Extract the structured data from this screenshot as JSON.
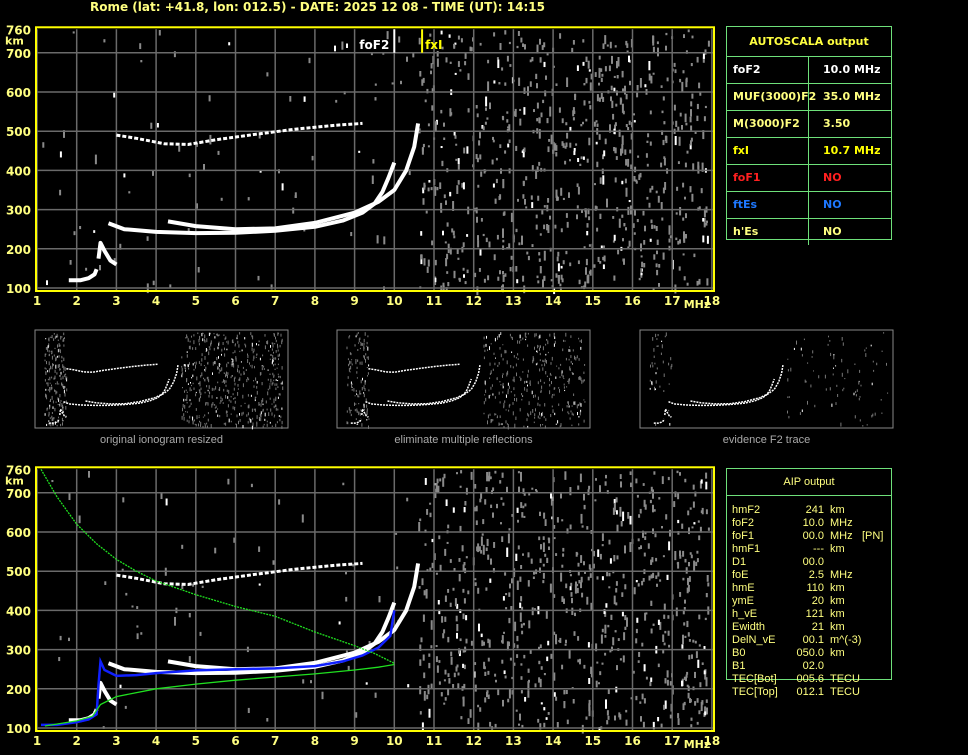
{
  "header": {
    "title": "Rome (lat: +41.8, lon: 012.5) - DATE: 2025 12 08 - TIME (UT): 14:15"
  },
  "colors": {
    "frame": "#ffff00",
    "grid": "#6a6a6a",
    "trace": "#ffffff",
    "noise": "#8a8a8a",
    "profile": "#1020ff",
    "model": "#20e020",
    "label": "#ffff80",
    "table_border": "#6ee07a"
  },
  "autoscala": {
    "title": "AUTOSCALA output",
    "rows": [
      {
        "key": "foF2",
        "value": "10.0 MHz",
        "color": "#ffffff"
      },
      {
        "key": "MUF(3000)F2",
        "value": "35.0 MHz",
        "color": "#ffff80"
      },
      {
        "key": "M(3000)F2",
        "value": "3.50",
        "color": "#ffff80"
      },
      {
        "key": "fxI",
        "value": "10.7 MHz",
        "color": "#ffff00"
      },
      {
        "key": "foF1",
        "value": "NO",
        "color": "#ff2020"
      },
      {
        "key": "ftEs",
        "value": "NO",
        "color": "#1e78ff"
      },
      {
        "key": "h'Es",
        "value": "NO",
        "color": "#ffff80"
      }
    ]
  },
  "aip": {
    "title": "AIP output",
    "rows": [
      {
        "key": "hmF2",
        "value": "241",
        "unit": "km",
        "note": ""
      },
      {
        "key": "foF2",
        "value": "10.0",
        "unit": "MHz",
        "note": ""
      },
      {
        "key": "foF1",
        "value": "00.0",
        "unit": "MHz",
        "note": "[PN]"
      },
      {
        "key": "hmF1",
        "value": "---",
        "unit": "km",
        "note": ""
      },
      {
        "key": "D1",
        "value": "00.0",
        "unit": "",
        "note": ""
      },
      {
        "key": "foE",
        "value": "2.5",
        "unit": "MHz",
        "note": ""
      },
      {
        "key": "hmE",
        "value": "110",
        "unit": "km",
        "note": ""
      },
      {
        "key": "ymE",
        "value": "20",
        "unit": "km",
        "note": ""
      },
      {
        "key": "h_vE",
        "value": "121",
        "unit": "km",
        "note": ""
      },
      {
        "key": "Ewidth",
        "value": "21",
        "unit": "km",
        "note": ""
      },
      {
        "key": "DelN_vE",
        "value": "00.1",
        "unit": "m^(-3)",
        "note": ""
      },
      {
        "key": "B0",
        "value": "050.0",
        "unit": "km",
        "note": ""
      },
      {
        "key": "B1",
        "value": "02.0",
        "unit": "",
        "note": ""
      },
      {
        "key": "TEC[Bot]",
        "value": "005.6",
        "unit": "TECU",
        "note": ""
      },
      {
        "key": "TEC[Top]",
        "value": "012.1",
        "unit": "TECU",
        "note": ""
      }
    ]
  },
  "thumbnails": [
    {
      "caption": "original ionogram resized"
    },
    {
      "caption": "eliminate multiple reflections"
    },
    {
      "caption": "evidence F2 trace"
    }
  ],
  "chart_data": [
    {
      "type": "scatter",
      "name": "ionogram-autoscala",
      "xlabel": "MHz",
      "ylabel": "km",
      "xlim": [
        1,
        18
      ],
      "ylim": [
        100,
        760
      ],
      "xticks": [
        "1",
        "2",
        "3",
        "4",
        "5",
        "6",
        "7",
        "8",
        "9",
        "10",
        "11",
        "12",
        "13",
        "14",
        "15",
        "16",
        "17",
        "18"
      ],
      "yticks": [
        "100",
        "200",
        "300",
        "400",
        "500",
        "600",
        "700",
        "760"
      ],
      "grid": true,
      "markers": [
        {
          "label": "foF2",
          "x": 10.0,
          "color": "#ffffff"
        },
        {
          "label": "fxI",
          "x": 10.7,
          "color": "#ffff00"
        }
      ],
      "traces": [
        {
          "id": "o-trace",
          "points": [
            [
              2.8,
              265
            ],
            [
              3.2,
              250
            ],
            [
              4,
              243
            ],
            [
              5,
              240
            ],
            [
              6,
              241
            ],
            [
              7,
              246
            ],
            [
              8,
              256
            ],
            [
              8.7,
              272
            ],
            [
              9.2,
              292
            ],
            [
              9.5,
              315
            ],
            [
              9.7,
              345
            ],
            [
              9.85,
              380
            ],
            [
              10.0,
              420
            ]
          ]
        },
        {
          "id": "x-trace",
          "points": [
            [
              4.3,
              270
            ],
            [
              5,
              258
            ],
            [
              6,
              250
            ],
            [
              7,
              252
            ],
            [
              8,
              266
            ],
            [
              9,
              292
            ],
            [
              9.6,
              320
            ],
            [
              10,
              350
            ],
            [
              10.3,
              400
            ],
            [
              10.5,
              460
            ],
            [
              10.6,
              520
            ]
          ]
        },
        {
          "id": "e-trace",
          "points": [
            [
              1.8,
              120
            ],
            [
              2.1,
              120
            ],
            [
              2.3,
              125
            ],
            [
              2.45,
              135
            ],
            [
              2.5,
              148
            ]
          ]
        },
        {
          "id": "cusp-trace",
          "points": [
            [
              2.55,
              175
            ],
            [
              2.6,
              215
            ],
            [
              2.7,
              195
            ],
            [
              2.85,
              170
            ],
            [
              3.0,
              160
            ]
          ]
        },
        {
          "id": "second-hop",
          "points": [
            [
              3.0,
              490
            ],
            [
              3.5,
              482
            ],
            [
              4.2,
              468
            ],
            [
              4.8,
              466
            ],
            [
              5.5,
              478
            ],
            [
              6.5,
              492
            ],
            [
              7.5,
              505
            ],
            [
              8.5,
              515
            ],
            [
              9.2,
              520
            ]
          ]
        }
      ]
    },
    {
      "type": "line",
      "name": "ionogram-aip",
      "xlabel": "MHz",
      "ylabel": "km",
      "xlim": [
        1,
        18
      ],
      "ylim": [
        100,
        760
      ],
      "xticks": [
        "1",
        "2",
        "3",
        "4",
        "5",
        "6",
        "7",
        "8",
        "9",
        "10",
        "11",
        "12",
        "13",
        "14",
        "15",
        "16",
        "17",
        "18"
      ],
      "yticks": [
        "100",
        "200",
        "300",
        "400",
        "500",
        "600",
        "700",
        "760"
      ],
      "grid": true,
      "traces": [
        {
          "id": "o-trace",
          "points": [
            [
              2.8,
              265
            ],
            [
              3.2,
              250
            ],
            [
              4,
              243
            ],
            [
              5,
              240
            ],
            [
              6,
              241
            ],
            [
              7,
              246
            ],
            [
              8,
              256
            ],
            [
              8.7,
              272
            ],
            [
              9.2,
              292
            ],
            [
              9.5,
              315
            ],
            [
              9.7,
              345
            ],
            [
              9.85,
              380
            ],
            [
              10.0,
              420
            ]
          ]
        },
        {
          "id": "x-trace",
          "points": [
            [
              4.3,
              270
            ],
            [
              5,
              258
            ],
            [
              6,
              250
            ],
            [
              7,
              252
            ],
            [
              8,
              266
            ],
            [
              9,
              292
            ],
            [
              9.6,
              320
            ],
            [
              10,
              350
            ],
            [
              10.3,
              400
            ],
            [
              10.5,
              460
            ],
            [
              10.6,
              520
            ]
          ]
        },
        {
          "id": "e-trace",
          "points": [
            [
              1.8,
              120
            ],
            [
              2.1,
              120
            ],
            [
              2.3,
              125
            ],
            [
              2.45,
              135
            ],
            [
              2.5,
              148
            ]
          ]
        },
        {
          "id": "cusp-trace",
          "points": [
            [
              2.55,
              175
            ],
            [
              2.6,
              215
            ],
            [
              2.7,
              195
            ],
            [
              2.85,
              170
            ],
            [
              3.0,
              160
            ]
          ]
        },
        {
          "id": "second-hop",
          "points": [
            [
              3.0,
              490
            ],
            [
              3.5,
              482
            ],
            [
              4.2,
              468
            ],
            [
              4.8,
              466
            ],
            [
              5.5,
              478
            ],
            [
              6.5,
              492
            ],
            [
              7.5,
              505
            ],
            [
              8.5,
              515
            ],
            [
              9.2,
              520
            ]
          ]
        }
      ],
      "series": [
        {
          "id": "profile",
          "color": "#1020ff",
          "points": [
            [
              1.1,
              108
            ],
            [
              1.5,
              108
            ],
            [
              2.0,
              115
            ],
            [
              2.3,
              122
            ],
            [
              2.5,
              135
            ],
            [
              2.55,
              210
            ],
            [
              2.6,
              270
            ],
            [
              2.7,
              248
            ],
            [
              3.0,
              233
            ],
            [
              3.5,
              235
            ],
            [
              4,
              240
            ],
            [
              5,
              247
            ],
            [
              6,
              250
            ],
            [
              7,
              252
            ],
            [
              8,
              258
            ],
            [
              8.7,
              270
            ],
            [
              9.2,
              285
            ],
            [
              9.6,
              305
            ],
            [
              9.9,
              335
            ],
            [
              10.0,
              400
            ]
          ]
        },
        {
          "id": "model-upper",
          "color": "#20e020",
          "points": [
            [
              1.1,
              760
            ],
            [
              1.5,
              690
            ],
            [
              2,
              620
            ],
            [
              2.5,
              570
            ],
            [
              3,
              530
            ],
            [
              3.5,
              500
            ],
            [
              4,
              475
            ],
            [
              5,
              440
            ],
            [
              6,
              410
            ],
            [
              7,
              385
            ],
            [
              8,
              345
            ],
            [
              9,
              310
            ],
            [
              9.5,
              290
            ],
            [
              10,
              265
            ]
          ]
        },
        {
          "id": "model-lower",
          "color": "#20e020",
          "points": [
            [
              1.2,
              105
            ],
            [
              2.0,
              118
            ],
            [
              2.4,
              130
            ],
            [
              2.6,
              160
            ],
            [
              3,
              180
            ],
            [
              4,
              200
            ],
            [
              5,
              212
            ],
            [
              6,
              222
            ],
            [
              7,
              230
            ],
            [
              8,
              238
            ],
            [
              9,
              248
            ],
            [
              9.6,
              255
            ],
            [
              10,
              262
            ]
          ]
        }
      ]
    }
  ]
}
